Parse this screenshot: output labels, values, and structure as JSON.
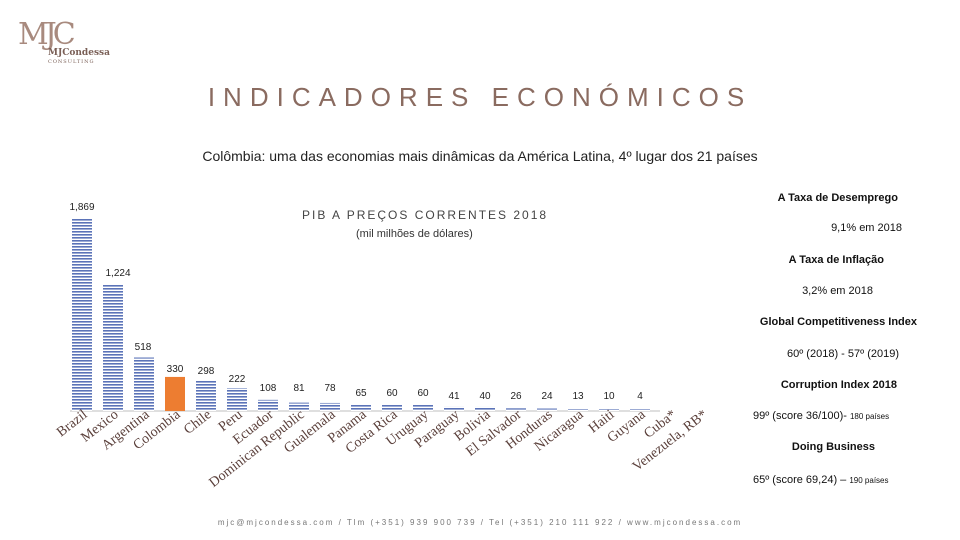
{
  "logo": {
    "mark": "MJC",
    "name": "MJCondessa",
    "sub": "CONSULTING"
  },
  "header": {
    "title": "INDICADORES ECONÓMICOS",
    "subtitle": "Colômbia: uma das economias mais dinâmicas da América Latina, 4º lugar dos 21 países"
  },
  "chart_data": {
    "type": "bar",
    "title": "PIB A PREÇOS CORRENTES 2018",
    "subtitle": "(mil milhões de dólares)",
    "categories": [
      "Brazil",
      "Mexico",
      "Argentina",
      "Colombia",
      "Chile",
      "Peru",
      "Ecuador",
      "Dominican Republic",
      "Gualemala",
      "Panama",
      "Costa Rica",
      "Uruguay",
      "Paraguay",
      "Bolivia",
      "El Salvador",
      "Honduras",
      "Nicaragua",
      "Haiti",
      "Guyana",
      "Cuba*",
      "Venezuela, RB*"
    ],
    "values": [
      1869,
      1224,
      518,
      330,
      298,
      222,
      108,
      81,
      78,
      65,
      60,
      60,
      41,
      40,
      26,
      24,
      13,
      10,
      4,
      null,
      null
    ],
    "value_labels": [
      "1,869",
      "1,224",
      "518",
      "330",
      "298",
      "222",
      "108",
      "81",
      "78",
      "65",
      "60",
      "60",
      "41",
      "40",
      "26",
      "24",
      "13",
      "10",
      "4",
      "",
      ""
    ],
    "highlight": "Colombia",
    "highlight_color": "#ed7d31",
    "bar_color": "#5b73b8",
    "ylim": [
      0,
      1869
    ]
  },
  "indicators": [
    {
      "heading": "A Taxa de Desemprego",
      "value": "9,1% em 2018"
    },
    {
      "heading": "A Taxa de Inflação",
      "value": "3,2% em 2018"
    },
    {
      "heading": "Global Competitiveness Index",
      "value": "60º (2018) - 57º (2019)"
    },
    {
      "heading": "Corruption Index 2018",
      "value": "99º (score 36/100)-",
      "note": "180 países"
    },
    {
      "heading": "Doing Business",
      "value": "65º (score 69,24) –",
      "note": "190 países"
    }
  ],
  "footer": {
    "text": "mjc@mjcondessa.com / Tlm (+351) 939 900 739 / Tel (+351) 210 111 922 / www.mjcondessa.com"
  }
}
